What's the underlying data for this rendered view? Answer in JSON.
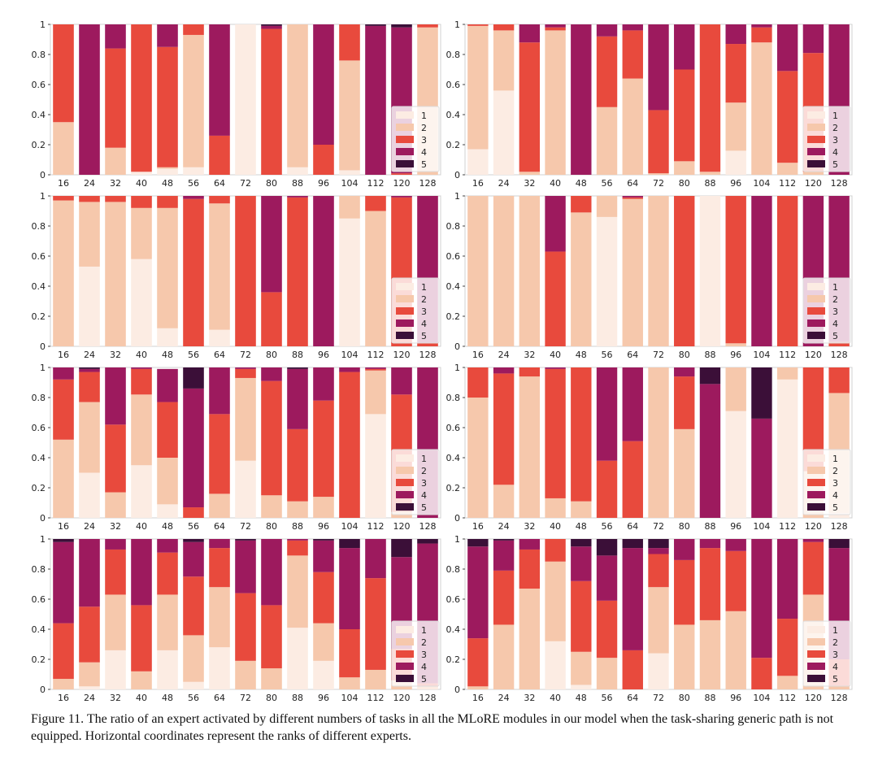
{
  "colors": {
    "1": "#fcece3",
    "2": "#f6c8ac",
    "3": "#e84a3d",
    "4": "#9d1a5e",
    "5": "#3b0f38",
    "frame": "#d0d0d0",
    "text": "#222222"
  },
  "caption": {
    "label": "Figure 11.",
    "text": "The ratio of an expert activated by different numbers of tasks in all the MLoRE modules in our model when the task-sharing generic path is not equipped. Horizontal coordinates represent the ranks of different experts."
  },
  "chart_data": [
    {
      "type": "bar",
      "stacked": true,
      "categories": [
        "16",
        "24",
        "32",
        "40",
        "48",
        "56",
        "64",
        "72",
        "80",
        "88",
        "96",
        "104",
        "112",
        "120",
        "128"
      ],
      "yticks": [
        "0",
        "0.2",
        "0.4",
        "0.6",
        "0.8",
        "1"
      ],
      "ylim": [
        0,
        1
      ],
      "legend": [
        "1",
        "2",
        "3",
        "4",
        "5"
      ],
      "legend_position": "bottom-right",
      "series": [
        {
          "name": "1",
          "values": [
            0,
            0,
            0,
            0.02,
            0.04,
            0.05,
            0,
            1,
            0,
            0.05,
            0,
            0.03,
            0,
            0,
            0
          ]
        },
        {
          "name": "2",
          "values": [
            0.35,
            0,
            0.18,
            0,
            0.01,
            0.88,
            0,
            0,
            0,
            0.95,
            0,
            0.73,
            0,
            0,
            0.98
          ]
        },
        {
          "name": "3",
          "values": [
            0.65,
            0,
            0.66,
            0.98,
            0.8,
            0.07,
            0.26,
            0,
            0.97,
            0,
            0.2,
            0.24,
            0,
            0.01,
            0.02
          ]
        },
        {
          "name": "4",
          "values": [
            0,
            1,
            0.16,
            0,
            0.15,
            0,
            0.74,
            0,
            0.02,
            0,
            0.8,
            0,
            0.99,
            0.97,
            0
          ]
        },
        {
          "name": "5",
          "values": [
            0,
            0,
            0,
            0,
            0,
            0,
            0,
            0,
            0.01,
            0,
            0,
            0,
            0.01,
            0.02,
            0
          ]
        }
      ]
    },
    {
      "type": "bar",
      "stacked": true,
      "categories": [
        "16",
        "24",
        "32",
        "40",
        "48",
        "56",
        "64",
        "72",
        "80",
        "88",
        "96",
        "104",
        "112",
        "120",
        "128"
      ],
      "yticks": [
        "0",
        "0.2",
        "0.4",
        "0.6",
        "0.8",
        "1"
      ],
      "ylim": [
        0,
        1
      ],
      "legend": [
        "1",
        "2",
        "3",
        "4",
        "5"
      ],
      "legend_position": "bottom-right",
      "series": [
        {
          "name": "1",
          "values": [
            0.17,
            0.56,
            0,
            0,
            0,
            0,
            0,
            0,
            0,
            0,
            0.16,
            0,
            0,
            0,
            0
          ]
        },
        {
          "name": "2",
          "values": [
            0.82,
            0.4,
            0.02,
            0.96,
            0,
            0.45,
            0.64,
            0.01,
            0.09,
            0.02,
            0.32,
            0.88,
            0.08,
            0.02,
            0
          ]
        },
        {
          "name": "3",
          "values": [
            0.01,
            0.04,
            0.86,
            0.02,
            0,
            0.47,
            0.32,
            0.42,
            0.61,
            0.98,
            0.39,
            0.1,
            0.61,
            0.79,
            0
          ]
        },
        {
          "name": "4",
          "values": [
            0,
            0,
            0.12,
            0.02,
            1,
            0.08,
            0.04,
            0.57,
            0.3,
            0,
            0.13,
            0.02,
            0.31,
            0.19,
            1
          ]
        },
        {
          "name": "5",
          "values": [
            0,
            0,
            0,
            0,
            0,
            0,
            0,
            0,
            0,
            0,
            0,
            0,
            0,
            0,
            0
          ]
        }
      ]
    },
    {
      "type": "bar",
      "stacked": true,
      "categories": [
        "16",
        "24",
        "32",
        "40",
        "48",
        "56",
        "64",
        "72",
        "80",
        "88",
        "96",
        "104",
        "112",
        "120",
        "128"
      ],
      "yticks": [
        "0",
        "0.2",
        "0.4",
        "0.6",
        "0.8",
        "1"
      ],
      "ylim": [
        0,
        1
      ],
      "legend": [
        "1",
        "2",
        "3",
        "4",
        "5"
      ],
      "legend_position": "bottom-right",
      "series": [
        {
          "name": "1",
          "values": [
            0,
            0.53,
            0,
            0.58,
            0.12,
            0,
            0.11,
            0,
            0,
            0,
            0,
            0.85,
            0,
            0,
            0
          ]
        },
        {
          "name": "2",
          "values": [
            0.97,
            0.43,
            0.96,
            0.34,
            0.8,
            0,
            0.84,
            0,
            0,
            0,
            0,
            0.15,
            0.9,
            0,
            0
          ]
        },
        {
          "name": "3",
          "values": [
            0.03,
            0.04,
            0.04,
            0.08,
            0.08,
            0.98,
            0.05,
            1,
            0.36,
            0.99,
            0,
            0,
            0.1,
            0.99,
            0.02
          ]
        },
        {
          "name": "4",
          "values": [
            0,
            0,
            0,
            0,
            0,
            0.02,
            0,
            0,
            0.64,
            0.01,
            1,
            0,
            0,
            0.01,
            0.98
          ]
        },
        {
          "name": "5",
          "values": [
            0,
            0,
            0,
            0,
            0,
            0,
            0,
            0,
            0,
            0,
            0,
            0,
            0,
            0,
            0
          ]
        }
      ]
    },
    {
      "type": "bar",
      "stacked": true,
      "categories": [
        "16",
        "24",
        "32",
        "40",
        "48",
        "56",
        "64",
        "72",
        "80",
        "88",
        "96",
        "104",
        "112",
        "120",
        "128"
      ],
      "yticks": [
        "0",
        "0.2",
        "0.4",
        "0.6",
        "0.8",
        "1"
      ],
      "ylim": [
        0,
        1
      ],
      "legend": [
        "1",
        "2",
        "3",
        "4",
        "5"
      ],
      "legend_position": "bottom-right",
      "series": [
        {
          "name": "1",
          "values": [
            0,
            0,
            0,
            0,
            0,
            0.86,
            0,
            0,
            0,
            1,
            0,
            0,
            0,
            0,
            0
          ]
        },
        {
          "name": "2",
          "values": [
            1,
            1,
            1,
            0,
            0.89,
            0.14,
            0.98,
            1,
            0,
            0,
            0.02,
            0,
            0,
            0,
            0
          ]
        },
        {
          "name": "3",
          "values": [
            0,
            0,
            0,
            0.63,
            0.11,
            0,
            0.01,
            0,
            1,
            0,
            0.98,
            0,
            1,
            0,
            0.03
          ]
        },
        {
          "name": "4",
          "values": [
            0,
            0,
            0,
            0.37,
            0,
            0,
            0.01,
            0,
            0,
            0,
            0,
            1,
            0,
            1,
            0.97
          ]
        },
        {
          "name": "5",
          "values": [
            0,
            0,
            0,
            0,
            0,
            0,
            0,
            0,
            0,
            0,
            0,
            0,
            0,
            0,
            0
          ]
        }
      ]
    },
    {
      "type": "bar",
      "stacked": true,
      "categories": [
        "16",
        "24",
        "32",
        "40",
        "48",
        "56",
        "64",
        "72",
        "80",
        "88",
        "96",
        "104",
        "112",
        "120",
        "128"
      ],
      "yticks": [
        "0",
        "0.2",
        "0.4",
        "0.6",
        "0.8",
        "1"
      ],
      "ylim": [
        0,
        1
      ],
      "legend": [
        "1",
        "2",
        "3",
        "4",
        "5"
      ],
      "legend_position": "bottom-right",
      "series": [
        {
          "name": "1",
          "values": [
            0,
            0.3,
            0,
            0.35,
            0.09,
            0,
            0,
            0.38,
            0,
            0,
            0,
            0,
            0.69,
            0,
            0
          ]
        },
        {
          "name": "2",
          "values": [
            0.52,
            0.47,
            0.17,
            0.47,
            0.31,
            0,
            0.16,
            0.55,
            0.15,
            0.11,
            0.14,
            0,
            0.29,
            0.04,
            0
          ]
        },
        {
          "name": "3",
          "values": [
            0.4,
            0.2,
            0.45,
            0.17,
            0.37,
            0.07,
            0.53,
            0.06,
            0.76,
            0.48,
            0.64,
            0.97,
            0.01,
            0.78,
            0
          ]
        },
        {
          "name": "4",
          "values": [
            0.08,
            0.02,
            0.38,
            0.01,
            0.22,
            0.79,
            0.31,
            0.01,
            0.09,
            0.4,
            0.22,
            0.03,
            0.01,
            0.18,
            1
          ]
        },
        {
          "name": "5",
          "values": [
            0,
            0.01,
            0,
            0,
            0,
            0.14,
            0,
            0,
            0,
            0.01,
            0,
            0,
            0,
            0,
            0
          ]
        }
      ]
    },
    {
      "type": "bar",
      "stacked": true,
      "categories": [
        "16",
        "24",
        "32",
        "40",
        "48",
        "56",
        "64",
        "72",
        "80",
        "88",
        "96",
        "104",
        "112",
        "120",
        "128"
      ],
      "yticks": [
        "0",
        "0.2",
        "0.4",
        "0.6",
        "0.8",
        "1"
      ],
      "ylim": [
        0,
        1
      ],
      "legend": [
        "1",
        "2",
        "3",
        "4",
        "5"
      ],
      "legend_position": "bottom-right",
      "series": [
        {
          "name": "1",
          "values": [
            0,
            0,
            0,
            0,
            0,
            0,
            0,
            0,
            0,
            0,
            0.71,
            0,
            0.92,
            0,
            0.03
          ]
        },
        {
          "name": "2",
          "values": [
            0.8,
            0.22,
            0.94,
            0.13,
            0.11,
            0,
            0,
            1,
            0.59,
            0,
            0.29,
            0,
            0.08,
            0.31,
            0.8
          ]
        },
        {
          "name": "3",
          "values": [
            0.2,
            0.74,
            0.06,
            0.86,
            0.89,
            0.38,
            0.51,
            0,
            0.35,
            0,
            0,
            0,
            0,
            0.69,
            0.17
          ]
        },
        {
          "name": "4",
          "values": [
            0,
            0.04,
            0,
            0.01,
            0,
            0.62,
            0.49,
            0,
            0.06,
            0.89,
            0,
            0.66,
            0,
            0,
            0
          ]
        },
        {
          "name": "5",
          "values": [
            0,
            0,
            0,
            0,
            0,
            0,
            0,
            0,
            0,
            0.11,
            0,
            0.34,
            0,
            0,
            0
          ]
        }
      ]
    },
    {
      "type": "bar",
      "stacked": true,
      "categories": [
        "16",
        "24",
        "32",
        "40",
        "48",
        "56",
        "64",
        "72",
        "80",
        "88",
        "96",
        "104",
        "112",
        "120",
        "128"
      ],
      "yticks": [
        "0",
        "0.2",
        "0.4",
        "0.6",
        "0.8",
        "1"
      ],
      "ylim": [
        0,
        1
      ],
      "legend": [
        "1",
        "2",
        "3",
        "4",
        "5"
      ],
      "legend_position": "bottom-right",
      "series": [
        {
          "name": "1",
          "values": [
            0,
            0.02,
            0.26,
            0,
            0.26,
            0.05,
            0.28,
            0,
            0,
            0.41,
            0.19,
            0,
            0,
            0,
            0.02
          ]
        },
        {
          "name": "2",
          "values": [
            0.07,
            0.16,
            0.37,
            0.12,
            0.37,
            0.31,
            0.4,
            0.19,
            0.14,
            0.48,
            0.25,
            0.08,
            0.13,
            0.06,
            0
          ]
        },
        {
          "name": "3",
          "values": [
            0.37,
            0.37,
            0.3,
            0.44,
            0.28,
            0.39,
            0.26,
            0.45,
            0.42,
            0.1,
            0.34,
            0.32,
            0.61,
            0.21,
            0.02
          ]
        },
        {
          "name": "4",
          "values": [
            0.54,
            0.45,
            0.07,
            0.44,
            0.09,
            0.23,
            0.06,
            0.35,
            0.44,
            0.01,
            0.21,
            0.54,
            0.26,
            0.61,
            0.93
          ]
        },
        {
          "name": "5",
          "values": [
            0.02,
            0,
            0,
            0,
            0,
            0.02,
            0,
            0.01,
            0,
            0,
            0.01,
            0.06,
            0,
            0.12,
            0.03
          ]
        }
      ]
    },
    {
      "type": "bar",
      "stacked": true,
      "categories": [
        "16",
        "24",
        "32",
        "40",
        "48",
        "56",
        "64",
        "72",
        "80",
        "88",
        "96",
        "104",
        "112",
        "120",
        "128"
      ],
      "yticks": [
        "0",
        "0.2",
        "0.4",
        "0.6",
        "0.8",
        "1"
      ],
      "ylim": [
        0,
        1
      ],
      "legend": [
        "1",
        "2",
        "3",
        "4",
        "5"
      ],
      "legend_position": "bottom-right",
      "series": [
        {
          "name": "1",
          "values": [
            0,
            0,
            0,
            0.32,
            0.03,
            0,
            0,
            0.24,
            0,
            0,
            0,
            0,
            0,
            0,
            0
          ]
        },
        {
          "name": "2",
          "values": [
            0.02,
            0.43,
            0.67,
            0.53,
            0.22,
            0.21,
            0,
            0.44,
            0.43,
            0.46,
            0.52,
            0,
            0.09,
            0.63,
            0.02
          ]
        },
        {
          "name": "3",
          "values": [
            0.32,
            0.36,
            0.26,
            0.15,
            0.47,
            0.38,
            0.26,
            0.22,
            0.43,
            0.48,
            0.4,
            0.21,
            0.38,
            0.35,
            0.18
          ]
        },
        {
          "name": "4",
          "values": [
            0.61,
            0.2,
            0.07,
            0,
            0.23,
            0.3,
            0.68,
            0.04,
            0.14,
            0.06,
            0.08,
            0.79,
            0.53,
            0.02,
            0.74
          ]
        },
        {
          "name": "5",
          "values": [
            0.05,
            0.01,
            0,
            0,
            0.05,
            0.11,
            0.06,
            0.06,
            0,
            0,
            0,
            0,
            0,
            0,
            0.06
          ]
        }
      ]
    }
  ]
}
